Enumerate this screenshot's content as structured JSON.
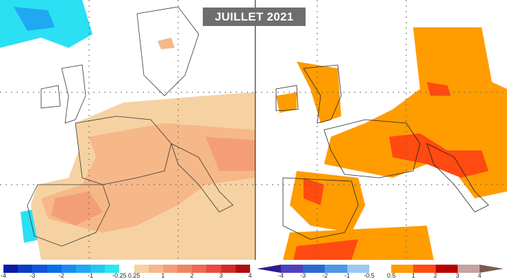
{
  "title": "JUILLET 2021",
  "left_legend": {
    "colors": [
      "#0a1aa8",
      "#0b3cc6",
      "#0c55dc",
      "#0a6ee8",
      "#1a8cf0",
      "#20a8f2",
      "#22c8f4",
      "#2ae8f0",
      "#ffffff",
      "#f6d2a2",
      "#f6b888",
      "#f49e78",
      "#f28464",
      "#ef6a52",
      "#e84a3e",
      "#d42a24",
      "#b00c12"
    ],
    "ticks": [
      "-4",
      "-3",
      "-2",
      "-1",
      "-0.25",
      "0.25",
      "1",
      "2",
      "3",
      "4"
    ]
  },
  "right_legend": {
    "colors": [
      "#5040c0",
      "#2a6ad0",
      "#4a98e8",
      "#9ac8f4",
      "#ffffff",
      "#ff9c00",
      "#ff4a10",
      "#b80000",
      "#c8a0a0"
    ],
    "low_color": "#2c1c90",
    "high_color": "#7a5a50",
    "ticks": [
      "-4",
      "-3",
      "-2",
      "-1",
      "-0.5",
      "0.5",
      "1",
      "2",
      "3",
      "4"
    ]
  }
}
